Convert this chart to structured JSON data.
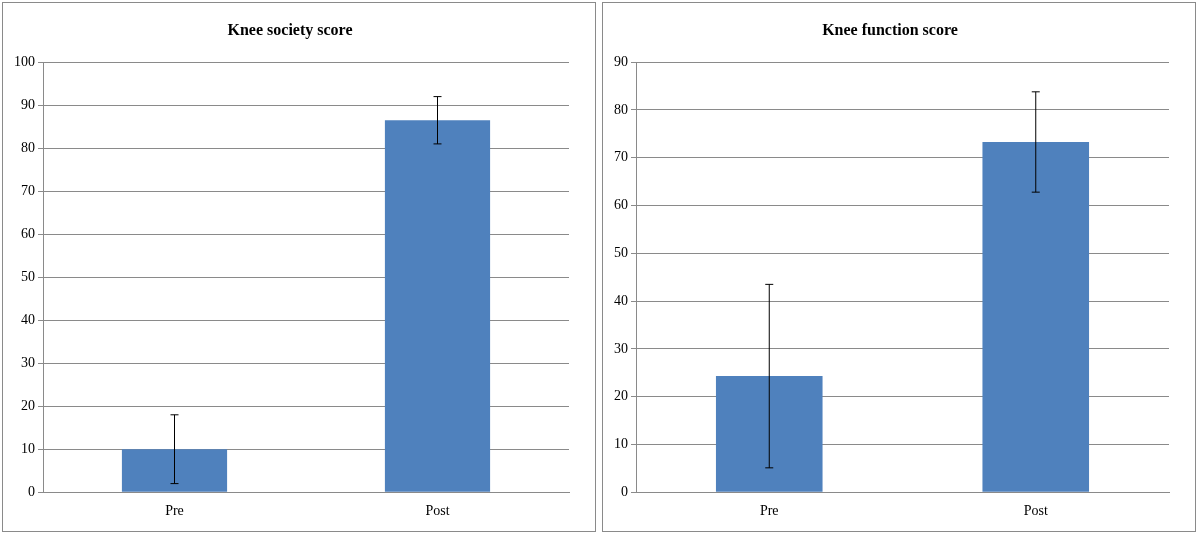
{
  "chart_data": [
    {
      "type": "bar",
      "title": "Knee society score",
      "categories": [
        "Pre",
        "Post"
      ],
      "values": [
        10,
        86.5
      ],
      "errors": [
        8,
        5.5
      ],
      "color": "#4f81bd",
      "ylim": [
        0,
        100
      ],
      "yticks": [
        0,
        10,
        20,
        30,
        40,
        50,
        60,
        70,
        80,
        90,
        100
      ],
      "grid": "y",
      "legend": false
    },
    {
      "type": "bar",
      "title": "Knee function score",
      "categories": [
        "Pre",
        "Post"
      ],
      "values": [
        24.3,
        73.3
      ],
      "errors": [
        19.2,
        10.5
      ],
      "color": "#4f81bd",
      "ylim": [
        0,
        90
      ],
      "yticks": [
        0,
        10,
        20,
        30,
        40,
        50,
        60,
        70,
        80,
        90
      ],
      "grid": "y",
      "legend": false
    }
  ]
}
